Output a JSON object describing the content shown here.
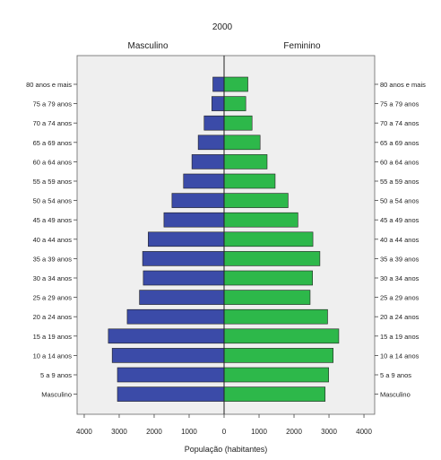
{
  "chart_data": {
    "type": "bar",
    "title": "2000",
    "xlabel": "População (habitantes)",
    "xlim": [
      -4000,
      4000
    ],
    "xticks": [
      -4000,
      -3000,
      -2000,
      -1000,
      0,
      1000,
      2000,
      3000,
      4000
    ],
    "xtick_labels": [
      "4000",
      "3000",
      "2000",
      "1000",
      "0",
      "1000",
      "2000",
      "3000",
      "4000"
    ],
    "grid": false,
    "categories": [
      "80 anos e mais",
      "75 a 79 anos",
      "70 a 74 anos",
      "65 a 69 anos",
      "60 a 64 anos",
      "55 a 59 anos",
      "50 a 54 anos",
      "45 a 49 anos",
      "40 a 44 anos",
      "35 a 39 anos",
      "30 a 34 anos",
      "25 a 29 anos",
      "20 a 24 anos",
      "15 a 19 anos",
      "10 a 14 anos",
      "5 a 9 anos",
      "Masculino"
    ],
    "series": [
      {
        "name": "Masculino",
        "color": "#3b4ba8",
        "values": [
          320,
          350,
          570,
          740,
          920,
          1160,
          1490,
          1720,
          2170,
          2330,
          2310,
          2420,
          2770,
          3310,
          3200,
          3050,
          3050
        ]
      },
      {
        "name": "Feminino",
        "color": "#2db84a",
        "values": [
          680,
          620,
          800,
          1030,
          1230,
          1460,
          1830,
          2110,
          2540,
          2740,
          2530,
          2460,
          2960,
          3280,
          3120,
          2990,
          2890
        ]
      }
    ]
  }
}
